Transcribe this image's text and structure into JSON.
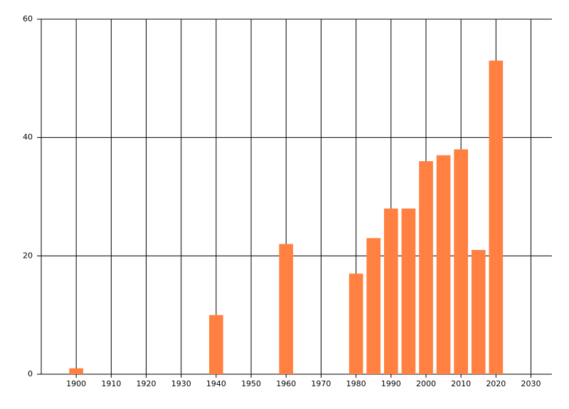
{
  "chart_data": {
    "type": "bar",
    "x": [
      1900,
      1940,
      1960,
      1980,
      1985,
      1990,
      1995,
      2000,
      2005,
      2010,
      2015,
      2020
    ],
    "values": [
      1,
      10,
      22,
      17,
      23,
      28,
      28,
      36,
      37,
      38,
      21,
      53
    ],
    "color": "#ff8040",
    "xlim": [
      1890,
      2036
    ],
    "xticks": [
      1900,
      1910,
      1920,
      1930,
      1940,
      1950,
      1960,
      1970,
      1980,
      1990,
      2000,
      2010,
      2020,
      2030
    ],
    "ylim": [
      0,
      60
    ],
    "yticks": [
      0,
      20,
      40,
      60
    ],
    "grid": true
  }
}
